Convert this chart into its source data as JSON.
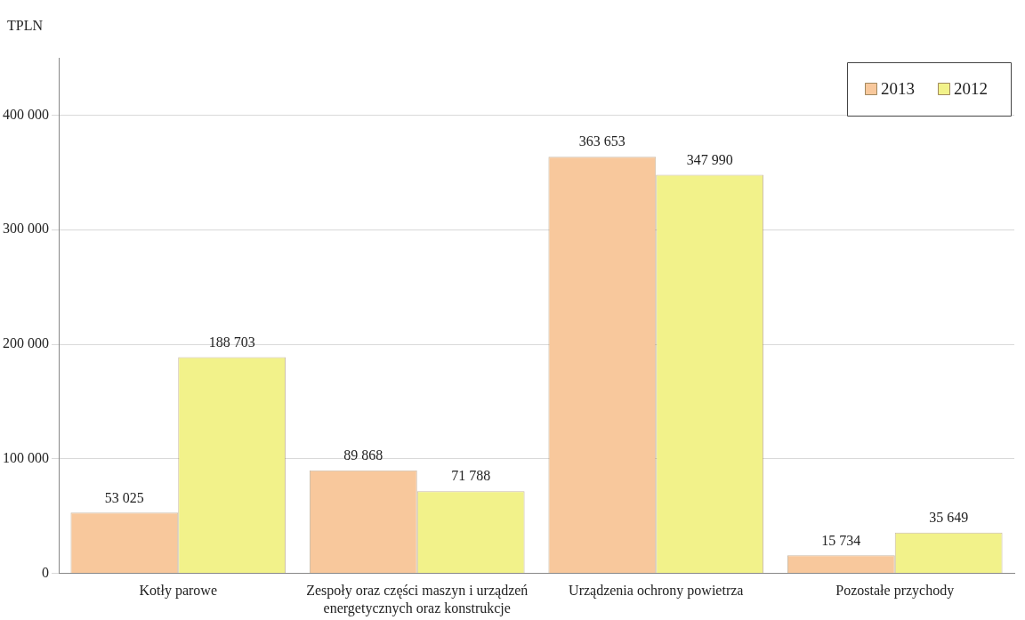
{
  "chart_data": {
    "type": "bar",
    "ylabel": "TPLN",
    "categories": [
      "Kotły parowe",
      "Zespoły oraz części maszyn i urządzeń energetycznych oraz konstrukcje",
      "Urządzenia ochrony powietrza",
      "Pozostałe przychody"
    ],
    "series": [
      {
        "name": "2013",
        "color": "#f8c89c",
        "values": [
          53025,
          89868,
          363653,
          15734
        ],
        "value_labels": [
          "53 025",
          "89 868",
          "363 653",
          "15 734"
        ]
      },
      {
        "name": "2012",
        "color": "#f2f28a",
        "values": [
          188703,
          71788,
          347990,
          35649
        ],
        "value_labels": [
          "188 703",
          "71 788",
          "347 990",
          "35 649"
        ]
      }
    ],
    "ylim": [
      0,
      450000
    ],
    "yticks": [
      {
        "value": 0,
        "label": "0"
      },
      {
        "value": 100000,
        "label": "100 000"
      },
      {
        "value": 200000,
        "label": "200 000"
      },
      {
        "value": 300000,
        "label": "300 000"
      },
      {
        "value": 400000,
        "label": "400 000"
      }
    ],
    "grid": "y",
    "legend": "top right"
  }
}
